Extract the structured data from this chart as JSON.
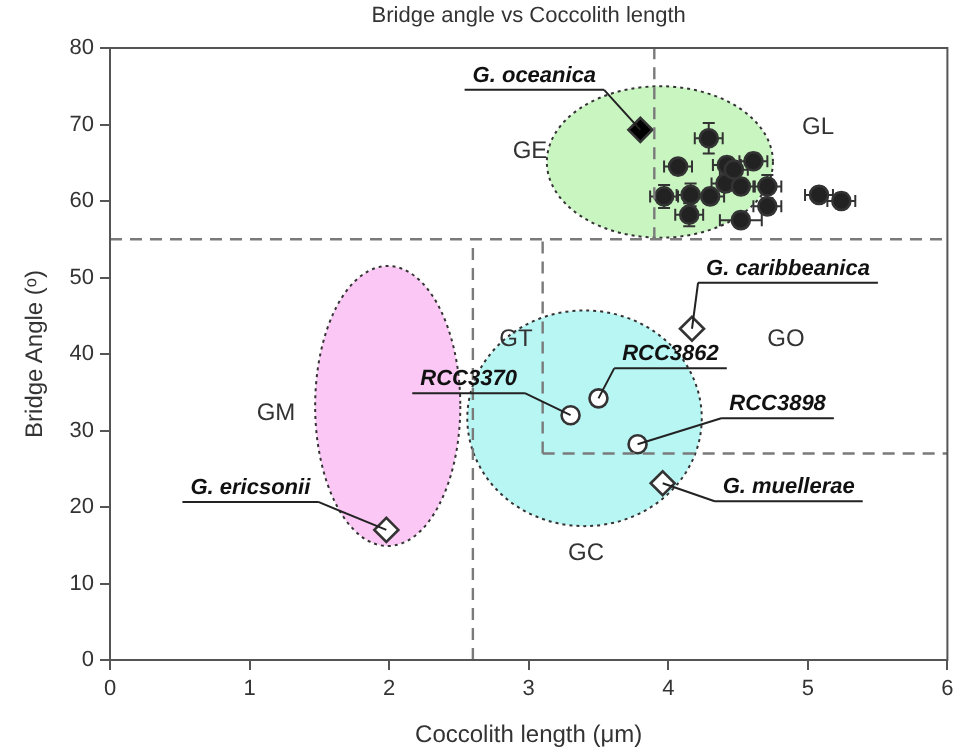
{
  "chart_data": {
    "type": "scatter",
    "title": "Bridge angle vs Coccolith length",
    "xlabel": "Coccolith length (μm)",
    "ylabel": "Bridge Angle (ᵒ)",
    "xlim": [
      0,
      6
    ],
    "xticks": [
      0,
      1,
      2,
      3,
      4,
      5,
      6
    ],
    "ylim": [
      0,
      80
    ],
    "yticks": [
      0,
      10,
      20,
      30,
      40,
      50,
      60,
      70,
      80
    ],
    "grid": false,
    "legend": false,
    "series": [
      {
        "type": "line",
        "line_style": "dashed",
        "marker": "none",
        "color": "#7a7a7a",
        "x": [
          0,
          6
        ],
        "values": [
          55,
          55
        ]
      },
      {
        "type": "line",
        "line_style": "dashed",
        "marker": "none",
        "color": "#7a7a7a",
        "x": [
          3.9,
          3.9
        ],
        "values": [
          55,
          80
        ]
      },
      {
        "type": "line",
        "line_style": "dashed",
        "marker": "none",
        "color": "#7a7a7a",
        "x": [
          2.6,
          2.6
        ],
        "values": [
          0,
          55
        ]
      },
      {
        "type": "line",
        "line_style": "dashed",
        "marker": "none",
        "color": "#7a7a7a",
        "x": [
          3.1,
          3.1
        ],
        "values": [
          27,
          55
        ]
      },
      {
        "type": "line",
        "line_style": "dashed",
        "marker": "none",
        "color": "#7a7a7a",
        "x": [
          3.1,
          6
        ],
        "values": [
          27,
          27
        ]
      },
      {
        "type": "scatter",
        "marker": "circle",
        "color": "#222222",
        "x": [
          3.97,
          4.07,
          4.29,
          4.16,
          4.15,
          4.3,
          4.42,
          4.41,
          4.47,
          4.52,
          4.61,
          4.52,
          4.71,
          4.71,
          5.08,
          5.24
        ],
        "values": [
          60.6,
          64.5,
          68.2,
          60.8,
          58.2,
          60.6,
          64.7,
          62.3,
          64.1,
          61.9,
          65.2,
          57.5,
          61.9,
          59.3,
          60.8,
          60.0
        ],
        "errors": [
          1.5,
          1,
          2,
          1.5,
          1.5,
          1,
          1,
          1,
          null,
          1,
          1,
          1,
          1.5,
          1,
          1,
          1
        ],
        "xerrors": [
          0.1,
          0.1,
          0.1,
          0.1,
          0.1,
          0.1,
          0.1,
          0.1,
          0.1,
          0.1,
          0.1,
          0.15,
          0.1,
          0.1,
          0.1,
          0.1
        ]
      },
      {
        "type": "scatter",
        "marker": "diamond",
        "color": "#000000",
        "x": [
          3.8
        ],
        "values": [
          69.3
        ]
      },
      {
        "type": "scatter",
        "marker": "diamond",
        "color": "#ffffff",
        "x": [
          4.17,
          1.98,
          3.96
        ],
        "values": [
          43.3,
          17.0,
          23.1
        ]
      },
      {
        "type": "scatter",
        "marker": "circle",
        "color": "#ffffff",
        "x": [
          3.5,
          3.3,
          3.78
        ],
        "values": [
          34.2,
          32.0,
          28.2
        ]
      }
    ],
    "annotations": [
      {
        "text": "G. oceanica",
        "x": 3.8,
        "y": 69.3
      },
      {
        "text": "G. caribbeanica",
        "x": 4.17,
        "y": 43.3
      },
      {
        "text": "RCC3862",
        "x": 3.5,
        "y": 34.2
      },
      {
        "text": "RCC3370",
        "x": 3.3,
        "y": 32.0
      },
      {
        "text": "RCC3898",
        "x": 3.78,
        "y": 28.2
      },
      {
        "text": "G. muellerae",
        "x": 3.96,
        "y": 23.1
      },
      {
        "text": "G. ericsonii",
        "x": 1.98,
        "y": 17.0
      },
      "GE",
      "GL",
      "GT",
      "GO",
      "GM",
      "GC"
    ]
  }
}
